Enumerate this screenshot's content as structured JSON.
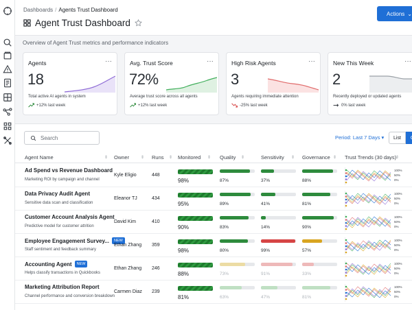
{
  "breadcrumb": {
    "root": "Dashboards",
    "separator": "/",
    "current": "Agents Trust Dashboard"
  },
  "page": {
    "title": "Agent Trust Dashboard",
    "overview": "Overview of Agent Trust metrics and performance indicators"
  },
  "header": {
    "actions_label": "Actions"
  },
  "cards": [
    {
      "title": "Agents",
      "value": "18",
      "desc": "Total active AI agents in system",
      "trend": "+12% last week",
      "trend_dir": "up",
      "spark_color": "#8e6bd6"
    },
    {
      "title": "Avg. Trust Score",
      "value": "72%",
      "desc": "Average trust score across all agents",
      "trend": "+12% last week",
      "trend_dir": "up",
      "spark_color": "#3fae5a"
    },
    {
      "title": "High Risk Agents",
      "value": "3",
      "desc": "Agents requiring immediate attention",
      "trend": "-25% last week",
      "trend_dir": "down",
      "spark_color": "#e06a6a"
    },
    {
      "title": "New This Week",
      "value": "2",
      "desc": "Recently deployed or updated agents",
      "trend": "0% last week",
      "trend_dir": "flat",
      "spark_color": "#9aa0a6"
    }
  ],
  "toolbar": {
    "search_placeholder": "Search",
    "period_label": "Period: Last 7 Days",
    "view_list": "List",
    "view_grid": "Gr"
  },
  "table": {
    "headers": [
      "Agent Name",
      "Owner",
      "Runs",
      "Monitored",
      "Quality",
      "Sensitivity",
      "Governance",
      "Trust Trends (30 days)"
    ],
    "trend_legend": [
      "100%",
      "50%",
      "0%"
    ],
    "rows": [
      {
        "name": "Ad Spend vs Revenue Dashboard",
        "badge": "",
        "desc": "Marketing ROI by campaign and channel",
        "owner": "Kyle Eligio",
        "runs": "448",
        "monitored": "98%",
        "quality": {
          "value": "87%",
          "pct": 0.87,
          "color": "#2e8b3d"
        },
        "sensitivity": {
          "value": "37%",
          "pct": 0.37,
          "color": "#2e8b3d"
        },
        "governance": {
          "value": "88%",
          "pct": 0.88,
          "color": "#2e8b3d"
        }
      },
      {
        "name": "Data Privacy Audit Agent",
        "badge": "",
        "desc": "Sensitive data scan and classification",
        "owner": "Eleanor TJ",
        "runs": "434",
        "monitored": "95%",
        "quality": {
          "value": "89%",
          "pct": 0.89,
          "color": "#2e8b3d"
        },
        "sensitivity": {
          "value": "41%",
          "pct": 0.41,
          "color": "#2e8b3d"
        },
        "governance": {
          "value": "81%",
          "pct": 0.81,
          "color": "#2e8b3d"
        }
      },
      {
        "name": "Customer Account Analysis Agent",
        "badge": "",
        "desc": "Predictive model for customer attrition",
        "owner": "David Kim",
        "runs": "410",
        "monitored": "90%",
        "quality": {
          "value": "83%",
          "pct": 0.83,
          "color": "#2e8b3d"
        },
        "sensitivity": {
          "value": "14%",
          "pct": 0.14,
          "color": "#2e8b3d"
        },
        "governance": {
          "value": "90%",
          "pct": 0.9,
          "color": "#2e8b3d"
        }
      },
      {
        "name": "Employee Engagement Survey...",
        "badge": "NEW",
        "desc": "Staff sentiment and feedback summary",
        "owner": "Ethan Zhang",
        "runs": "359",
        "monitored": "98%",
        "quality": {
          "value": "80%",
          "pct": 0.8,
          "color": "#2e8b3d"
        },
        "sensitivity": {
          "value": "99%",
          "pct": 0.99,
          "color": "#d64545"
        },
        "governance": {
          "value": "57%",
          "pct": 0.57,
          "color": "#d9a521"
        }
      },
      {
        "name": "Accounting Agent",
        "badge": "NEW",
        "desc": "Helps classify transactions in Quickbooks",
        "owner": "Ethan Zhang",
        "runs": "246",
        "monitored": "88%",
        "quality": {
          "value": "73%",
          "pct": 0.73,
          "color": "#ecdca4"
        },
        "sensitivity": {
          "value": "91%",
          "pct": 0.91,
          "color": "#eeb9b9"
        },
        "governance": {
          "value": "33%",
          "pct": 0.33,
          "color": "#eeb9b9"
        }
      },
      {
        "name": "Marketing Attribution Report",
        "badge": "",
        "desc": "Channel performance and conversion breakdown",
        "owner": "Carmen Diaz",
        "runs": "239",
        "monitored": "81%",
        "quality": {
          "value": "63%",
          "pct": 0.63,
          "color": "#bfe0c3"
        },
        "sensitivity": {
          "value": "47%",
          "pct": 0.47,
          "color": "#bfe0c3"
        },
        "governance": {
          "value": "81%",
          "pct": 0.81,
          "color": "#bfe0c3"
        }
      }
    ]
  },
  "colors": {
    "accent": "#1f6fd6",
    "good": "#2e8b3d",
    "bad": "#d64545",
    "warn": "#d9a521"
  },
  "icons": [
    "compass-icon",
    "search-icon",
    "folder-icon",
    "alert-icon",
    "document-icon",
    "table-icon",
    "workflow-icon",
    "apps-icon",
    "tools-icon"
  ]
}
